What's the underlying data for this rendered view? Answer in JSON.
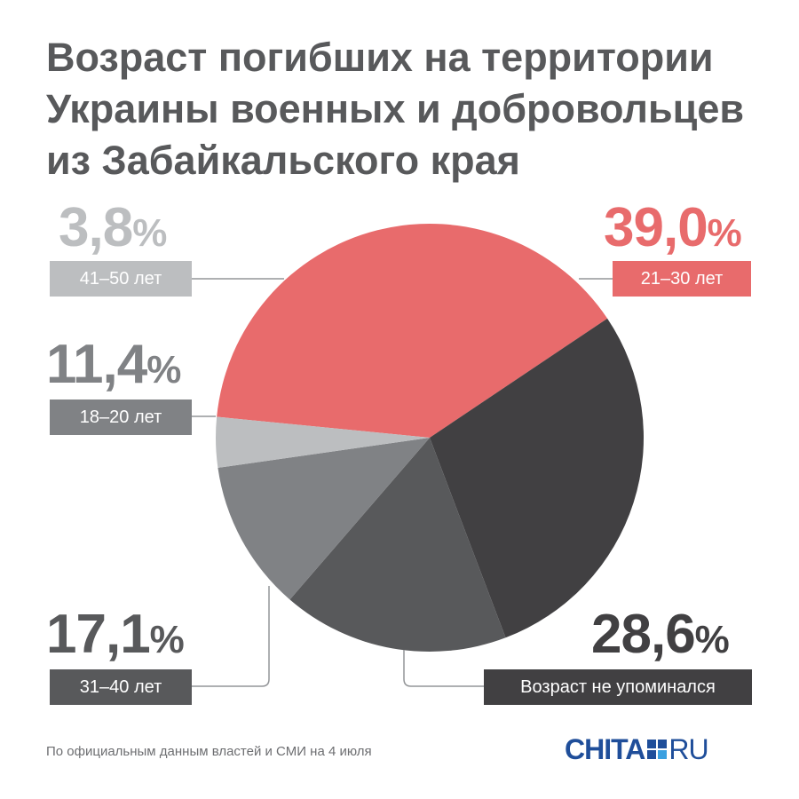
{
  "title_lines": [
    "Возраст погибших на территории",
    "Украины военных и добровольцев",
    "из Забайкальского края"
  ],
  "chart_data": {
    "type": "pie",
    "title": "Возраст погибших на территории Украины военных и добровольцев из Забайкальского края",
    "slices": [
      {
        "label": "21–30 лет",
        "value": 39.0,
        "display": "39,0",
        "color": "#e86b6c"
      },
      {
        "label": "Возраст не упоминался",
        "value": 28.6,
        "display": "28,6",
        "color": "#414042"
      },
      {
        "label": "31–40 лет",
        "value": 17.1,
        "display": "17,1",
        "color": "#58595b"
      },
      {
        "label": "18–20 лет",
        "value": 11.4,
        "display": "11,4",
        "color": "#808285"
      },
      {
        "label": "41–50 лет",
        "value": 3.8,
        "display": "3,8",
        "color": "#bcbec0"
      }
    ]
  },
  "percent_sign": "%",
  "footnote": "По официальным данным властей и СМИ на 4 июля",
  "logo": {
    "left": "CHITA",
    "right": "RU",
    "color": "#1f4e9a",
    "accent": "#3aa0e0"
  }
}
